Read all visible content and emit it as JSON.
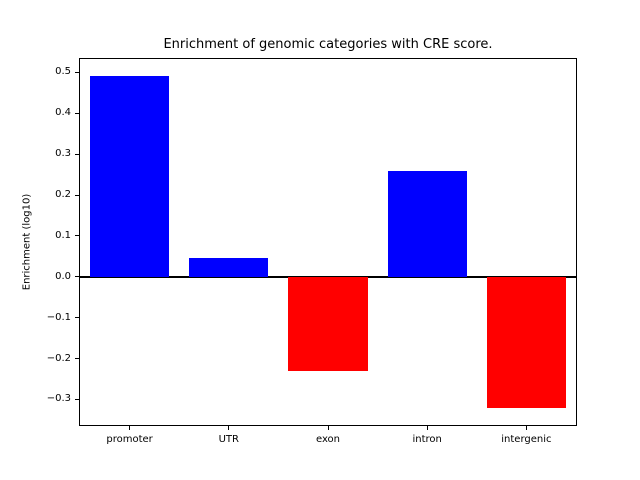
{
  "chart_data": {
    "type": "bar",
    "title": "Enrichment of genomic categories with CRE score.",
    "ylabel": "Enrichment (log10)",
    "xlabel": "",
    "categories": [
      "promoter",
      "UTR",
      "exon",
      "intron",
      "intergenic"
    ],
    "values": [
      0.49,
      0.045,
      -0.23,
      0.26,
      -0.32
    ],
    "bar_colors": [
      "#0000ff",
      "#0000ff",
      "#ff0000",
      "#0000ff",
      "#ff0000"
    ],
    "positive_color": "#0000ff",
    "negative_color": "#ff0000",
    "yticks": [
      0.5,
      0.4,
      0.3,
      0.2,
      0.1,
      0.0,
      -0.1,
      -0.2,
      -0.3
    ],
    "ylim": [
      -0.3625,
      0.5328
    ],
    "grid": false,
    "legend": "none",
    "zero_line": true,
    "zero_line_color": "#000000",
    "axis_color": "#000000",
    "background": "#ffffff"
  }
}
